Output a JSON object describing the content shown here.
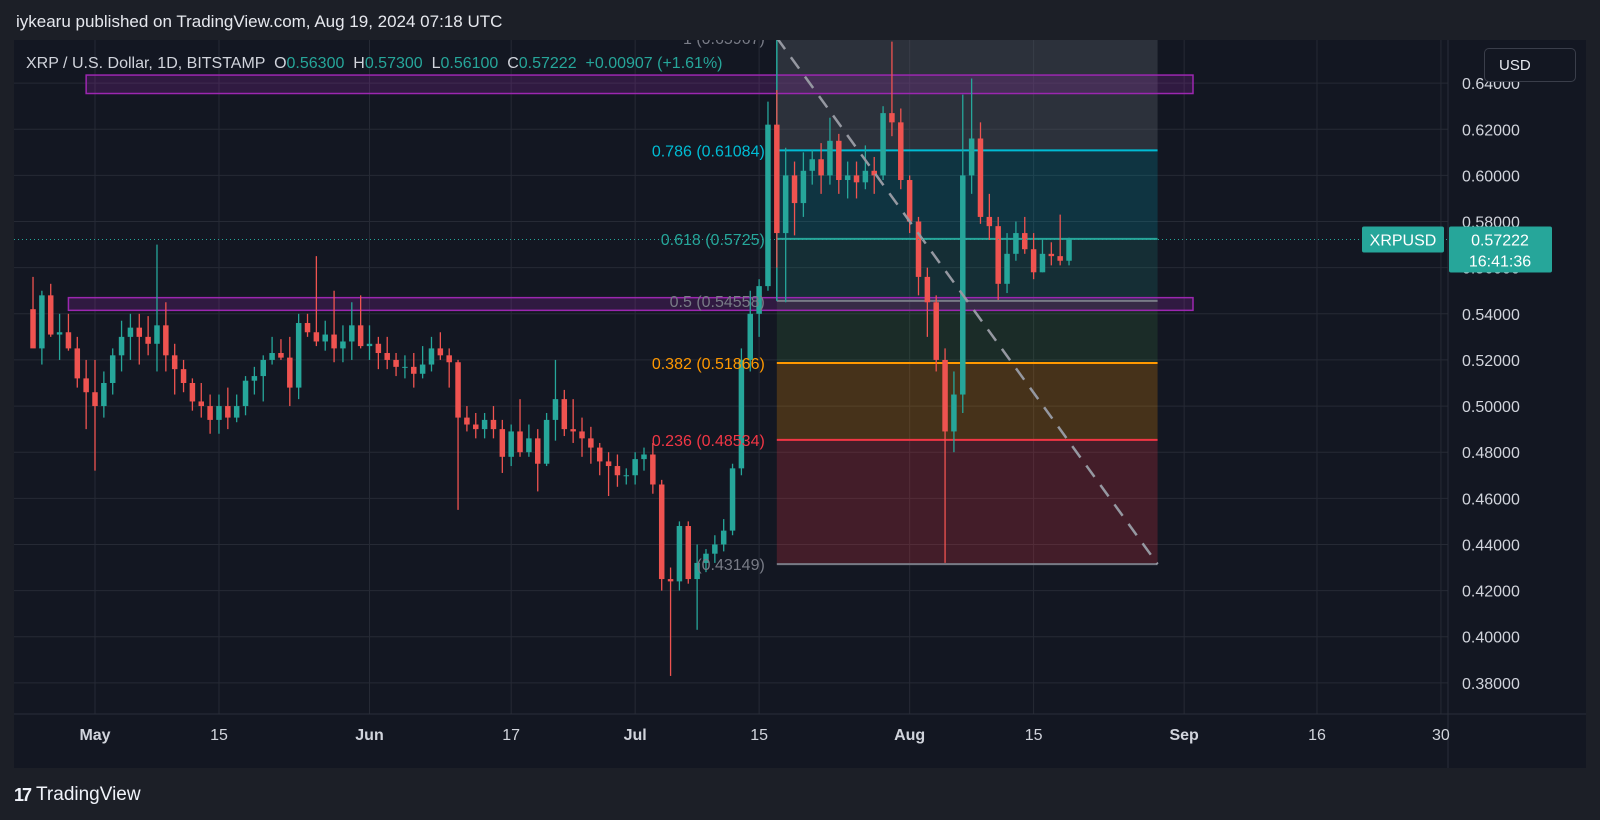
{
  "header": {
    "published_text": "iykearu published on TradingView.com, Aug 19, 2024 07:18 UTC"
  },
  "symbol_bar": {
    "symbol": "XRP / U.S. Dollar, 1D, BITSTAMP",
    "open_label": "O",
    "open_value": "0.56300",
    "high_label": "H",
    "high_value": "0.57300",
    "low_label": "L",
    "low_value": "0.56100",
    "close_label": "C",
    "close_value": "0.57222",
    "change": "+0.00907 (+1.61%)"
  },
  "currency_button": "USD",
  "footer": {
    "logo_mark": "17",
    "logo_text": "TradingView"
  },
  "colors": {
    "background": "#131722",
    "up": "#26a69a",
    "down": "#ef5350",
    "grid": "#262a35",
    "resistance_box": "#9c27b0",
    "fib_0786": "#00bcd4",
    "fib_0618": "#26a69a",
    "fib_05": "#787b86",
    "fib_0382": "#ff9800",
    "fib_0236": "#f23645",
    "fib_1": "#787b86"
  },
  "chart_data": {
    "type": "candlestick",
    "symbol": "XRPUSD",
    "interval": "1D",
    "y_ticks": [
      "0.64000",
      "0.62000",
      "0.60000",
      "0.58000",
      "0.56000",
      "0.54000",
      "0.52000",
      "0.50000",
      "0.48000",
      "0.46000",
      "0.44000",
      "0.42000",
      "0.40000",
      "0.38000"
    ],
    "ylim": [
      0.3665,
      0.6587
    ],
    "x_ticks": [
      {
        "label": "May",
        "date": "2024-05-01",
        "bold": true
      },
      {
        "label": "15",
        "date": "2024-05-15",
        "bold": false
      },
      {
        "label": "Jun",
        "date": "2024-06-01",
        "bold": true
      },
      {
        "label": "17",
        "date": "2024-06-17",
        "bold": false
      },
      {
        "label": "Jul",
        "date": "2024-07-01",
        "bold": true
      },
      {
        "label": "15",
        "date": "2024-07-15",
        "bold": false
      },
      {
        "label": "Aug",
        "date": "2024-08-01",
        "bold": true
      },
      {
        "label": "15",
        "date": "2024-08-15",
        "bold": false
      },
      {
        "label": "Sep",
        "date": "2024-09-01",
        "bold": true
      },
      {
        "label": "16",
        "date": "2024-09-16",
        "bold": false
      },
      {
        "label": "30",
        "date": "2024-09-30",
        "bold": false
      }
    ],
    "xlim": [
      "2024-04-24",
      "2024-09-30"
    ],
    "candles": [
      [
        "2024-04-24",
        0.542,
        0.556,
        0.526,
        0.525
      ],
      [
        "2024-04-25",
        0.525,
        0.55,
        0.518,
        0.548
      ],
      [
        "2024-04-26",
        0.548,
        0.553,
        0.53,
        0.531
      ],
      [
        "2024-04-27",
        0.531,
        0.54,
        0.52,
        0.532
      ],
      [
        "2024-04-28",
        0.532,
        0.54,
        0.524,
        0.525
      ],
      [
        "2024-04-29",
        0.525,
        0.53,
        0.508,
        0.512
      ],
      [
        "2024-04-30",
        0.512,
        0.52,
        0.49,
        0.506
      ],
      [
        "2024-05-01",
        0.506,
        0.52,
        0.472,
        0.5
      ],
      [
        "2024-05-02",
        0.5,
        0.515,
        0.495,
        0.51
      ],
      [
        "2024-05-03",
        0.51,
        0.525,
        0.505,
        0.522
      ],
      [
        "2024-05-04",
        0.522,
        0.537,
        0.515,
        0.53
      ],
      [
        "2024-05-05",
        0.53,
        0.54,
        0.52,
        0.534
      ],
      [
        "2024-05-06",
        0.534,
        0.54,
        0.518,
        0.53
      ],
      [
        "2024-05-07",
        0.53,
        0.539,
        0.522,
        0.527
      ],
      [
        "2024-05-08",
        0.527,
        0.57,
        0.515,
        0.535
      ],
      [
        "2024-05-09",
        0.535,
        0.545,
        0.515,
        0.522
      ],
      [
        "2024-05-10",
        0.522,
        0.527,
        0.505,
        0.516
      ],
      [
        "2024-05-11",
        0.516,
        0.52,
        0.506,
        0.51
      ],
      [
        "2024-05-12",
        0.51,
        0.512,
        0.498,
        0.502
      ],
      [
        "2024-05-13",
        0.502,
        0.51,
        0.495,
        0.5
      ],
      [
        "2024-05-14",
        0.5,
        0.505,
        0.488,
        0.494
      ],
      [
        "2024-05-15",
        0.494,
        0.505,
        0.488,
        0.5
      ],
      [
        "2024-05-16",
        0.5,
        0.508,
        0.49,
        0.495
      ],
      [
        "2024-05-17",
        0.495,
        0.505,
        0.493,
        0.5
      ],
      [
        "2024-05-18",
        0.5,
        0.513,
        0.496,
        0.511
      ],
      [
        "2024-05-19",
        0.511,
        0.517,
        0.505,
        0.513
      ],
      [
        "2024-05-20",
        0.513,
        0.522,
        0.502,
        0.52
      ],
      [
        "2024-05-21",
        0.52,
        0.53,
        0.518,
        0.523
      ],
      [
        "2024-05-22",
        0.523,
        0.529,
        0.52,
        0.521
      ],
      [
        "2024-05-23",
        0.521,
        0.53,
        0.5,
        0.508
      ],
      [
        "2024-05-24",
        0.508,
        0.54,
        0.503,
        0.536
      ],
      [
        "2024-05-25",
        0.536,
        0.54,
        0.53,
        0.532
      ],
      [
        "2024-05-26",
        0.532,
        0.565,
        0.526,
        0.528
      ],
      [
        "2024-05-27",
        0.528,
        0.537,
        0.524,
        0.531
      ],
      [
        "2024-05-28",
        0.531,
        0.55,
        0.519,
        0.525
      ],
      [
        "2024-05-29",
        0.525,
        0.535,
        0.519,
        0.528
      ],
      [
        "2024-05-30",
        0.528,
        0.545,
        0.52,
        0.535
      ],
      [
        "2024-05-31",
        0.535,
        0.548,
        0.525,
        0.526
      ],
      [
        "2024-06-01",
        0.526,
        0.535,
        0.52,
        0.527
      ],
      [
        "2024-06-02",
        0.527,
        0.53,
        0.516,
        0.523
      ],
      [
        "2024-06-03",
        0.523,
        0.53,
        0.516,
        0.52
      ],
      [
        "2024-06-04",
        0.52,
        0.523,
        0.513,
        0.517
      ],
      [
        "2024-06-05",
        0.517,
        0.522,
        0.512,
        0.517
      ],
      [
        "2024-06-06",
        0.517,
        0.523,
        0.508,
        0.514
      ],
      [
        "2024-06-07",
        0.514,
        0.526,
        0.512,
        0.518
      ],
      [
        "2024-06-08",
        0.518,
        0.53,
        0.515,
        0.525
      ],
      [
        "2024-06-09",
        0.525,
        0.532,
        0.52,
        0.522
      ],
      [
        "2024-06-10",
        0.522,
        0.525,
        0.508,
        0.519
      ],
      [
        "2024-06-11",
        0.519,
        0.52,
        0.455,
        0.495
      ],
      [
        "2024-06-12",
        0.495,
        0.5,
        0.489,
        0.492
      ],
      [
        "2024-06-13",
        0.492,
        0.497,
        0.486,
        0.49
      ],
      [
        "2024-06-14",
        0.49,
        0.497,
        0.486,
        0.494
      ],
      [
        "2024-06-15",
        0.494,
        0.5,
        0.486,
        0.49
      ],
      [
        "2024-06-16",
        0.49,
        0.494,
        0.471,
        0.478
      ],
      [
        "2024-06-17",
        0.478,
        0.492,
        0.474,
        0.489
      ],
      [
        "2024-06-18",
        0.489,
        0.503,
        0.478,
        0.48
      ],
      [
        "2024-06-19",
        0.48,
        0.492,
        0.478,
        0.486
      ],
      [
        "2024-06-20",
        0.486,
        0.49,
        0.463,
        0.475
      ],
      [
        "2024-06-21",
        0.475,
        0.497,
        0.474,
        0.494
      ],
      [
        "2024-06-22",
        0.494,
        0.52,
        0.485,
        0.503
      ],
      [
        "2024-06-23",
        0.503,
        0.507,
        0.487,
        0.49
      ],
      [
        "2024-06-24",
        0.49,
        0.503,
        0.484,
        0.489
      ],
      [
        "2024-06-25",
        0.489,
        0.495,
        0.478,
        0.486
      ],
      [
        "2024-06-26",
        0.486,
        0.491,
        0.475,
        0.482
      ],
      [
        "2024-06-27",
        0.482,
        0.484,
        0.47,
        0.476
      ],
      [
        "2024-06-28",
        0.476,
        0.48,
        0.461,
        0.474
      ],
      [
        "2024-06-29",
        0.474,
        0.479,
        0.465,
        0.47
      ],
      [
        "2024-06-30",
        0.47,
        0.473,
        0.466,
        0.47
      ],
      [
        "2024-07-01",
        0.47,
        0.48,
        0.466,
        0.477
      ],
      [
        "2024-07-02",
        0.477,
        0.482,
        0.472,
        0.479
      ],
      [
        "2024-07-03",
        0.479,
        0.484,
        0.462,
        0.466
      ],
      [
        "2024-07-04",
        0.466,
        0.468,
        0.42,
        0.425
      ],
      [
        "2024-07-05",
        0.425,
        0.43,
        0.383,
        0.424
      ],
      [
        "2024-07-06",
        0.424,
        0.45,
        0.42,
        0.448
      ],
      [
        "2024-07-07",
        0.448,
        0.45,
        0.423,
        0.425
      ],
      [
        "2024-07-08",
        0.425,
        0.44,
        0.403,
        0.432
      ],
      [
        "2024-07-09",
        0.432,
        0.438,
        0.428,
        0.436
      ],
      [
        "2024-07-10",
        0.436,
        0.444,
        0.432,
        0.44
      ],
      [
        "2024-07-11",
        0.44,
        0.451,
        0.437,
        0.446
      ],
      [
        "2024-07-12",
        0.446,
        0.475,
        0.444,
        0.473
      ],
      [
        "2024-07-13",
        0.473,
        0.525,
        0.47,
        0.52
      ],
      [
        "2024-07-14",
        0.52,
        0.55,
        0.515,
        0.54
      ],
      [
        "2024-07-15",
        0.54,
        0.555,
        0.53,
        0.552
      ],
      [
        "2024-07-16",
        0.552,
        0.632,
        0.55,
        0.622
      ],
      [
        "2024-07-17",
        0.622,
        0.637,
        0.56,
        0.575
      ],
      [
        "2024-07-18",
        0.575,
        0.612,
        0.545,
        0.6
      ],
      [
        "2024-07-19",
        0.6,
        0.606,
        0.574,
        0.588
      ],
      [
        "2024-07-20",
        0.588,
        0.61,
        0.582,
        0.602
      ],
      [
        "2024-07-21",
        0.602,
        0.611,
        0.596,
        0.607
      ],
      [
        "2024-07-22",
        0.607,
        0.614,
        0.592,
        0.6
      ],
      [
        "2024-07-23",
        0.6,
        0.625,
        0.596,
        0.615
      ],
      [
        "2024-07-24",
        0.615,
        0.618,
        0.592,
        0.598
      ],
      [
        "2024-07-25",
        0.598,
        0.606,
        0.59,
        0.6
      ],
      [
        "2024-07-26",
        0.6,
        0.606,
        0.59,
        0.597
      ],
      [
        "2024-07-27",
        0.597,
        0.613,
        0.594,
        0.602
      ],
      [
        "2024-07-28",
        0.602,
        0.608,
        0.592,
        0.6
      ],
      [
        "2024-07-29",
        0.6,
        0.63,
        0.598,
        0.627
      ],
      [
        "2024-07-30",
        0.627,
        0.658,
        0.617,
        0.623
      ],
      [
        "2024-07-31",
        0.623,
        0.629,
        0.594,
        0.598
      ],
      [
        "2024-08-01",
        0.598,
        0.6,
        0.575,
        0.58
      ],
      [
        "2024-08-02",
        0.58,
        0.582,
        0.548,
        0.556
      ],
      [
        "2024-08-03",
        0.556,
        0.56,
        0.53,
        0.545
      ],
      [
        "2024-08-04",
        0.545,
        0.548,
        0.515,
        0.52
      ],
      [
        "2024-08-05",
        0.52,
        0.525,
        0.432,
        0.489
      ],
      [
        "2024-08-06",
        0.489,
        0.515,
        0.48,
        0.505
      ],
      [
        "2024-08-07",
        0.505,
        0.635,
        0.497,
        0.6
      ],
      [
        "2024-08-08",
        0.6,
        0.642,
        0.592,
        0.616
      ],
      [
        "2024-08-09",
        0.616,
        0.623,
        0.579,
        0.582
      ],
      [
        "2024-08-10",
        0.582,
        0.592,
        0.572,
        0.578
      ],
      [
        "2024-08-11",
        0.578,
        0.582,
        0.546,
        0.553
      ],
      [
        "2024-08-12",
        0.553,
        0.575,
        0.549,
        0.566
      ],
      [
        "2024-08-13",
        0.566,
        0.58,
        0.563,
        0.575
      ],
      [
        "2024-08-14",
        0.575,
        0.582,
        0.566,
        0.568
      ],
      [
        "2024-08-15",
        0.568,
        0.575,
        0.555,
        0.558
      ],
      [
        "2024-08-16",
        0.558,
        0.572,
        0.558,
        0.566
      ],
      [
        "2024-08-17",
        0.566,
        0.571,
        0.561,
        0.565
      ],
      [
        "2024-08-18",
        0.565,
        0.583,
        0.561,
        0.563
      ],
      [
        "2024-08-19",
        0.563,
        0.573,
        0.561,
        0.57222
      ]
    ],
    "fib_retracement": {
      "start_date": "2024-07-17",
      "end_date": "2024-08-29",
      "levels": [
        {
          "ratio": 1,
          "price": 0.65967,
          "label": "1 (0.65967)",
          "color": "#787b86",
          "fill": "#2a2e39",
          "fill_opacity": 0.35
        },
        {
          "ratio": 0.786,
          "price": 0.61084,
          "label": "0.786 (0.61084)",
          "color": "#00bcd4",
          "fill": "#5d606b",
          "fill_opacity": 0.35
        },
        {
          "ratio": 0.618,
          "price": 0.5725,
          "label": "0.618 (0.5725)",
          "color": "#26a69a",
          "fill": "#00bcd4",
          "fill_opacity": 0.18
        },
        {
          "ratio": 0.5,
          "price": 0.54558,
          "label": "0.5 (0.54558)",
          "color": "#787b86",
          "fill": "#26a69a",
          "fill_opacity": 0.16
        },
        {
          "ratio": 0.382,
          "price": 0.51866,
          "label": "0.382 (0.51866)",
          "color": "#ff9800",
          "fill": "#4caf50",
          "fill_opacity": 0.14
        },
        {
          "ratio": 0.236,
          "price": 0.48534,
          "label": "0.236 (0.48534)",
          "color": "#f23645",
          "fill": "#ff9800",
          "fill_opacity": 0.22
        },
        {
          "ratio": 0,
          "price": 0.43149,
          "label": "(0.43149)",
          "color": "#787b86",
          "fill": "#f23645",
          "fill_opacity": 0.22
        }
      ],
      "top_band": {
        "top_price": 0.6587,
        "fill": "#1e3a8a",
        "fill_opacity": 0.55
      },
      "trend_line": {
        "from": [
          "2024-07-17",
          0.65967
        ],
        "to": [
          "2024-08-29",
          0.43149
        ],
        "style": "dashed"
      }
    },
    "resistance_zones": [
      {
        "from": "2024-04-30",
        "to": "2024-09-02",
        "low": 0.6355,
        "high": 0.6435
      },
      {
        "from": "2024-04-28",
        "to": "2024-09-02",
        "low": 0.5415,
        "high": 0.547
      }
    ],
    "last_price": {
      "symbol_label": "XRPUSD",
      "price": "0.57222",
      "countdown": "16:41:36",
      "value": 0.57222
    }
  }
}
